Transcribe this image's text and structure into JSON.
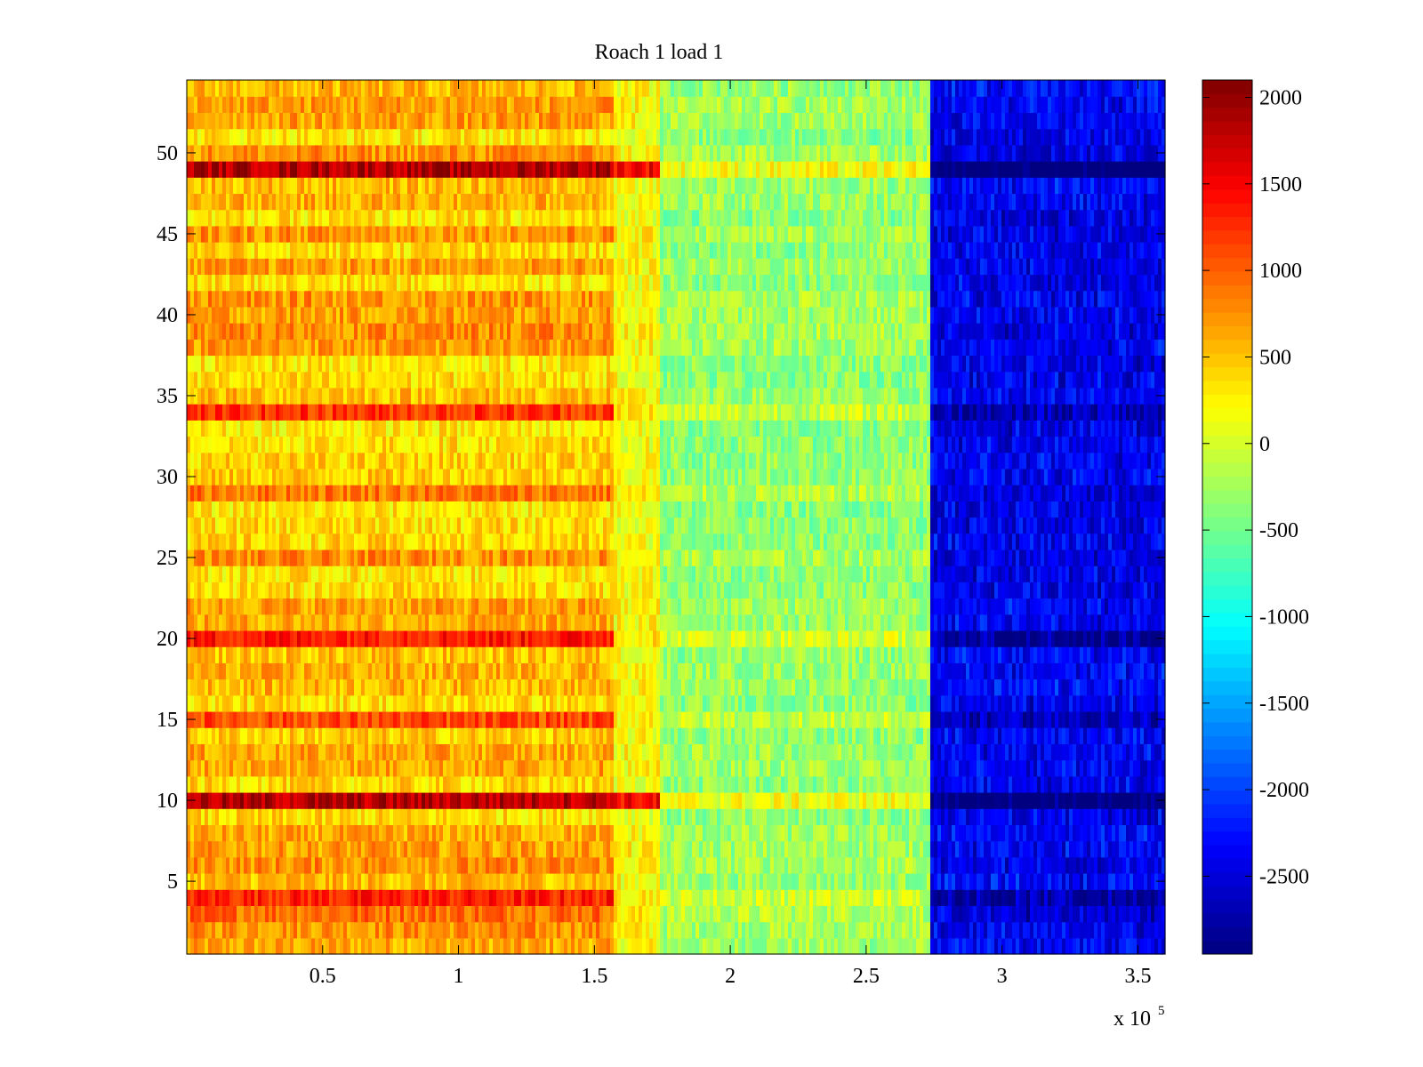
{
  "chart_data": {
    "type": "heatmap",
    "title": "Roach 1 load 1",
    "xlabel": "",
    "ylabel": "",
    "x_multiplier_label": "x 10",
    "x_multiplier_exponent": "5",
    "xlim": [
      0,
      3.6
    ],
    "ylim": [
      0.5,
      54.5
    ],
    "xticks": [
      0.5,
      1,
      1.5,
      2,
      2.5,
      3,
      3.5
    ],
    "xtick_labels": [
      "0.5",
      "1",
      "1.5",
      "2",
      "2.5",
      "3",
      "3.5"
    ],
    "yticks": [
      5,
      10,
      15,
      20,
      25,
      30,
      35,
      40,
      45,
      50
    ],
    "ytick_labels": [
      "5",
      "10",
      "15",
      "20",
      "25",
      "30",
      "35",
      "40",
      "45",
      "50"
    ],
    "colorbar": {
      "colormap": "jet",
      "clim": [
        -2950,
        2100
      ],
      "ticks": [
        2000,
        1500,
        1000,
        500,
        0,
        -500,
        -1000,
        -1500,
        -2000,
        -2500
      ],
      "tick_labels": [
        "2000",
        "1500",
        "1000",
        "500",
        "0",
        "-500",
        "-1000",
        "-1500",
        "-2000",
        "-2500"
      ]
    },
    "rows": 54,
    "segments": [
      {
        "name": "segment-1",
        "x_start": 0.0,
        "x_end": 1.57,
        "base_value": 550
      },
      {
        "name": "segment-2",
        "x_start": 1.57,
        "x_end": 1.74,
        "base_value": 200
      },
      {
        "name": "segment-3",
        "x_start": 1.74,
        "x_end": 2.74,
        "base_value": -300
      },
      {
        "name": "segment-4",
        "x_start": 2.74,
        "x_end": 3.6,
        "base_value": -2300
      }
    ],
    "notable_rows": [
      {
        "row": 49,
        "offset": 1100
      },
      {
        "row": 34,
        "offset": 650
      },
      {
        "row": 29,
        "offset": 500
      },
      {
        "row": 20,
        "offset": 650
      },
      {
        "row": 15,
        "offset": 700
      },
      {
        "row": 10,
        "offset": 1150
      },
      {
        "row": 4,
        "offset": 550
      },
      {
        "row": 3,
        "offset": 550
      }
    ]
  }
}
